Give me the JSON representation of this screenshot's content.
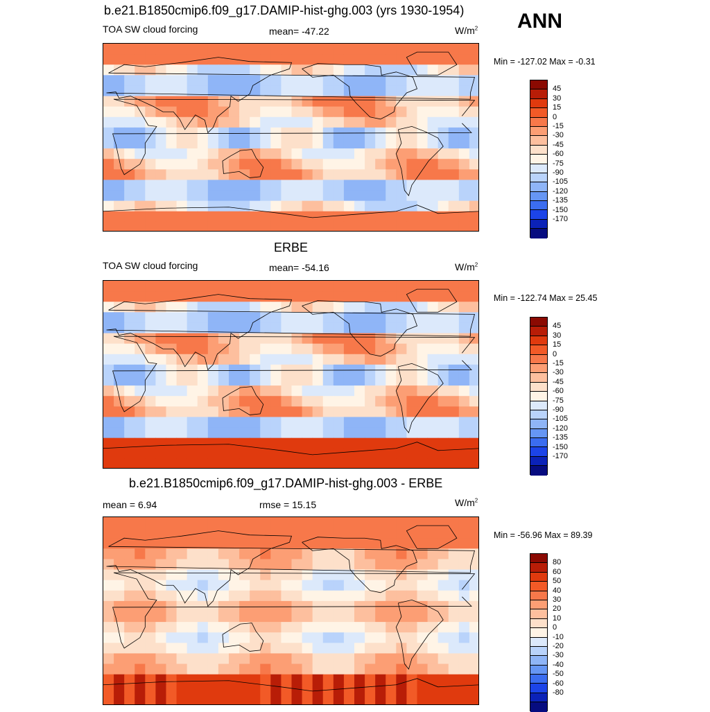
{
  "header": {
    "season": "ANN"
  },
  "panels": [
    {
      "title": "b.e21.B1850cmip6.f09_g17.DAMIP-hist-ghg.003 (yrs 1930-1954)",
      "left": "TOA SW cloud forcing",
      "center": "mean= -47.22",
      "units": "W/m",
      "units_sup": "2",
      "minmax": "Min = -127.02 Max =  -0.31",
      "levels": [
        "45",
        "30",
        "15",
        "0",
        "-15",
        "-30",
        "-45",
        "-60",
        "-75",
        "-90",
        "-105",
        "-120",
        "-135",
        "-150",
        "-170"
      ],
      "colors": [
        "#8b0a02",
        "#b81d07",
        "#e03a0e",
        "#f25a27",
        "#f7784a",
        "#fc9e74",
        "#fdbf9e",
        "#fde0ca",
        "#fff4e6",
        "#dce9fb",
        "#b9d3fb",
        "#8fb5f7",
        "#6696f4",
        "#3b6df0",
        "#1c44e8",
        "#0b22b8",
        "#060c80"
      ]
    },
    {
      "title": "ERBE",
      "left": "TOA SW cloud forcing",
      "center": "mean= -54.16",
      "units": "W/m",
      "units_sup": "2",
      "minmax": "Min = -122.74 Max =  25.45",
      "levels": [
        "45",
        "30",
        "15",
        "0",
        "-15",
        "-30",
        "-45",
        "-60",
        "-75",
        "-90",
        "-105",
        "-120",
        "-135",
        "-150",
        "-170"
      ],
      "colors": [
        "#8b0a02",
        "#b81d07",
        "#e03a0e",
        "#f25a27",
        "#f7784a",
        "#fc9e74",
        "#fdbf9e",
        "#fde0ca",
        "#fff4e6",
        "#dce9fb",
        "#b9d3fb",
        "#8fb5f7",
        "#6696f4",
        "#3b6df0",
        "#1c44e8",
        "#0b22b8",
        "#060c80"
      ]
    },
    {
      "title": "b.e21.B1850cmip6.f09_g17.DAMIP-hist-ghg.003 - ERBE",
      "left": "mean =   6.94",
      "center": "rmse =  15.15",
      "units": "W/m",
      "units_sup": "2",
      "minmax": "Min = -56.96 Max =  89.39",
      "levels": [
        "80",
        "60",
        "50",
        "40",
        "30",
        "20",
        "10",
        "0",
        "-10",
        "-20",
        "-30",
        "-40",
        "-50",
        "-60",
        "-80"
      ],
      "colors": [
        "#8b0a02",
        "#b81d07",
        "#e03a0e",
        "#f25a27",
        "#f7784a",
        "#fc9e74",
        "#fdbf9e",
        "#fde0ca",
        "#fff4e6",
        "#dce9fb",
        "#b9d3fb",
        "#8fb5f7",
        "#6696f4",
        "#3b6df0",
        "#1c44e8",
        "#0b22b8",
        "#060c80"
      ]
    }
  ]
}
